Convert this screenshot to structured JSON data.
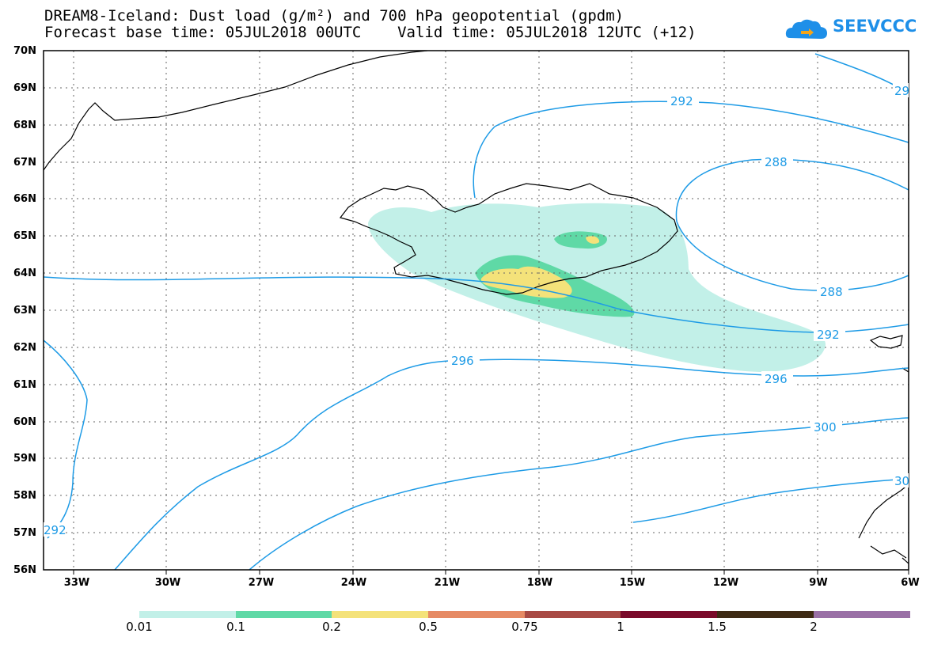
{
  "title": {
    "line1": "DREAM8-Iceland: Dust load (g/m²) and 700 hPa geopotential (gpdm)",
    "line2": "Forecast base time: 05JUL2018 00UTC    Valid time: 05JUL2018 12UTC (+12)"
  },
  "logo": {
    "text": "SEEVCCC",
    "icon": "cloud-arrow-icon",
    "color": "#1e8fe8"
  },
  "axes": {
    "lat_labels": [
      "70N",
      "69N",
      "68N",
      "67N",
      "66N",
      "65N",
      "64N",
      "63N",
      "62N",
      "61N",
      "60N",
      "59N",
      "58N",
      "57N",
      "56N"
    ],
    "lon_labels": [
      "33W",
      "30W",
      "27W",
      "24W",
      "21W",
      "18W",
      "15W",
      "12W",
      "9W",
      "6W"
    ],
    "lat_range": [
      56,
      70
    ],
    "lon_range": [
      -34.3,
      -6
    ]
  },
  "contours": {
    "color": "#1e9be6",
    "labels": [
      "292",
      "288",
      "288",
      "292",
      "296",
      "296",
      "300",
      "292"
    ],
    "partial_labels": [
      "29",
      "30"
    ]
  },
  "colorbar": {
    "ticks": [
      "0.01",
      "0.1",
      "0.2",
      "0.5",
      "0.75",
      "1",
      "1.5",
      "2"
    ],
    "colors": [
      "#c2f0e8",
      "#5fd9a6",
      "#f4e27a",
      "#e68a64",
      "#a84a44",
      "#7a0a2a",
      "#3e2a14",
      "#9a70a6"
    ]
  }
}
